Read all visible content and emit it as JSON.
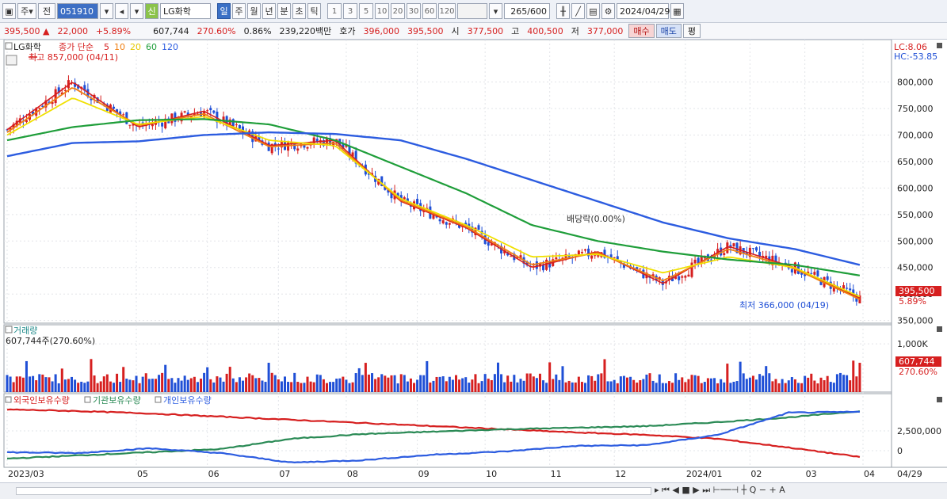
{
  "toolbar": {
    "market_label": "주",
    "prev_label": "전",
    "stock_code": "051910",
    "market_badge": "신",
    "stock_name": "LG화학",
    "periods": [
      "일",
      "주",
      "월",
      "년",
      "분",
      "초",
      "틱"
    ],
    "active_period": "일",
    "interval_numbers": [
      "1",
      "3",
      "5",
      "10",
      "20",
      "30",
      "60",
      "120"
    ],
    "count_display": "265",
    "count_total": "/600",
    "date": "2024/04/29"
  },
  "quote": {
    "price": "395,500",
    "change": "22,000",
    "change_pct": "+5.89%",
    "volume": "607,744",
    "volume_ratio": "270.60%",
    "turnover": "0.86%",
    "trade_value": "239,220백만",
    "ask_label": "호가",
    "ask": "396,000",
    "bid": "395,500",
    "open_label": "시",
    "open": "377,500",
    "high_label": "고",
    "high": "400,500",
    "low_label": "저",
    "low": "377,000",
    "buy_label": "매수",
    "sell_label": "매도",
    "eval_label": "평"
  },
  "colors": {
    "up": "#d61f1f",
    "down": "#1f4fd6",
    "ma5": "#d61f1f",
    "ma10": "#f07f12",
    "ma20": "#f0e000",
    "ma60": "#1f9e3a",
    "ma120": "#2c5ce0",
    "foreign": "#d61f1f",
    "institution": "#2a8a55",
    "individual": "#2c5ce0"
  },
  "chart_data": [
    {
      "type": "line",
      "title": "LG화학",
      "legend_prefix": "종가 단순",
      "series": [
        {
          "name": "5",
          "x": [
            "2023/03",
            "2023/04",
            "2023/05",
            "2023/06",
            "2023/07",
            "2023/08",
            "2023/09",
            "2023/10",
            "2023/11",
            "2023/12",
            "2024/01",
            "2024/02",
            "2024/03",
            "2024/04"
          ],
          "values": [
            710000,
            800000,
            715000,
            745000,
            680000,
            690000,
            575000,
            525000,
            450000,
            480000,
            420000,
            490000,
            450000,
            392000
          ]
        },
        {
          "name": "10",
          "x": [
            "2023/03",
            "2023/04",
            "2023/05",
            "2023/06",
            "2023/07",
            "2023/08",
            "2023/09",
            "2023/10",
            "2023/11",
            "2023/12",
            "2024/01",
            "2024/02",
            "2024/03",
            "2024/04"
          ],
          "values": [
            705000,
            790000,
            718000,
            740000,
            678000,
            685000,
            577000,
            527000,
            455000,
            478000,
            425000,
            485000,
            448000,
            390000
          ]
        },
        {
          "name": "20",
          "x": [
            "2023/03",
            "2023/04",
            "2023/05",
            "2023/06",
            "2023/07",
            "2023/08",
            "2023/09",
            "2023/10",
            "2023/11",
            "2023/12",
            "2024/01",
            "2024/02",
            "2024/03",
            "2024/04"
          ],
          "values": [
            700000,
            770000,
            720000,
            735000,
            690000,
            680000,
            580000,
            530000,
            470000,
            475000,
            440000,
            470000,
            450000,
            395000
          ]
        },
        {
          "name": "60",
          "x": [
            "2023/03",
            "2023/04",
            "2023/05",
            "2023/06",
            "2023/07",
            "2023/08",
            "2023/09",
            "2023/10",
            "2023/11",
            "2023/12",
            "2024/01",
            "2024/02",
            "2024/03",
            "2024/04"
          ],
          "values": [
            690000,
            715000,
            728000,
            730000,
            720000,
            690000,
            640000,
            590000,
            530000,
            500000,
            480000,
            465000,
            455000,
            435000
          ]
        },
        {
          "name": "120",
          "x": [
            "2023/03",
            "2023/04",
            "2023/05",
            "2023/06",
            "2023/07",
            "2023/08",
            "2023/09",
            "2023/10",
            "2023/11",
            "2023/12",
            "2024/01",
            "2024/02",
            "2024/03",
            "2024/04"
          ],
          "values": [
            660000,
            685000,
            688000,
            700000,
            705000,
            702000,
            690000,
            655000,
            615000,
            575000,
            535000,
            505000,
            485000,
            455000
          ]
        }
      ],
      "y_ticks": [
        "800,000",
        "750,000",
        "700,000",
        "650,000",
        "600,000",
        "550,000",
        "500,000",
        "450,000",
        "400,000",
        "350,000"
      ],
      "ylim": [
        345000,
        880000
      ],
      "annotations": {
        "high": "최고 857,000 (04/11)",
        "low": "최저 366,000 (04/19)",
        "dividend": "배당락(0.00%)",
        "lc": "LC:8.06",
        "hc": "HC:-53.85",
        "price_tag": "395,500",
        "pct_tag": "5.89%"
      },
      "grid": true
    },
    {
      "type": "bar",
      "title": "거래량",
      "volume_label": "607,744주(270.60%)",
      "y_ticks": [
        "1,000K"
      ],
      "last_value": 607744,
      "value_tag": "607,744",
      "pct_tag": "270.60%",
      "grid": true
    },
    {
      "type": "line",
      "legend": [
        "외국인보유수량",
        "기관보유수량",
        "개인보유수량"
      ],
      "x": [
        "2023/03",
        "2023/05",
        "2023/06",
        "2023/07",
        "2023/08",
        "2023/09",
        "2023/10",
        "2023/11",
        "2023/12",
        "2024/01",
        "2024/02",
        "2024/03",
        "2024/04"
      ],
      "series": [
        {
          "name": "외국인보유수량",
          "values": [
            5200000,
            5000000,
            4700000,
            4300000,
            3900000,
            3500000,
            3100000,
            2700000,
            2300000,
            2000000,
            1500000,
            400000,
            -800000
          ]
        },
        {
          "name": "기관보유수량",
          "values": [
            -1000000,
            -600000,
            -200000,
            200000,
            1500000,
            2100000,
            2400000,
            2700000,
            2900000,
            3100000,
            3600000,
            4200000,
            5000000
          ]
        },
        {
          "name": "개인보유수량",
          "values": [
            -200000,
            -300000,
            300000,
            -300000,
            -1500000,
            -1200000,
            -500000,
            -100000,
            600000,
            700000,
            2000000,
            4800000,
            4900000
          ]
        }
      ],
      "y_ticks": [
        "2,500,000",
        "0"
      ],
      "grid": true
    }
  ],
  "x_axis": {
    "ticks": [
      "2023/03",
      "05",
      "06",
      "07",
      "08",
      "09",
      "10",
      "11",
      "12",
      "2024/01",
      "02",
      "03",
      "04"
    ],
    "right_label": "04/29"
  }
}
